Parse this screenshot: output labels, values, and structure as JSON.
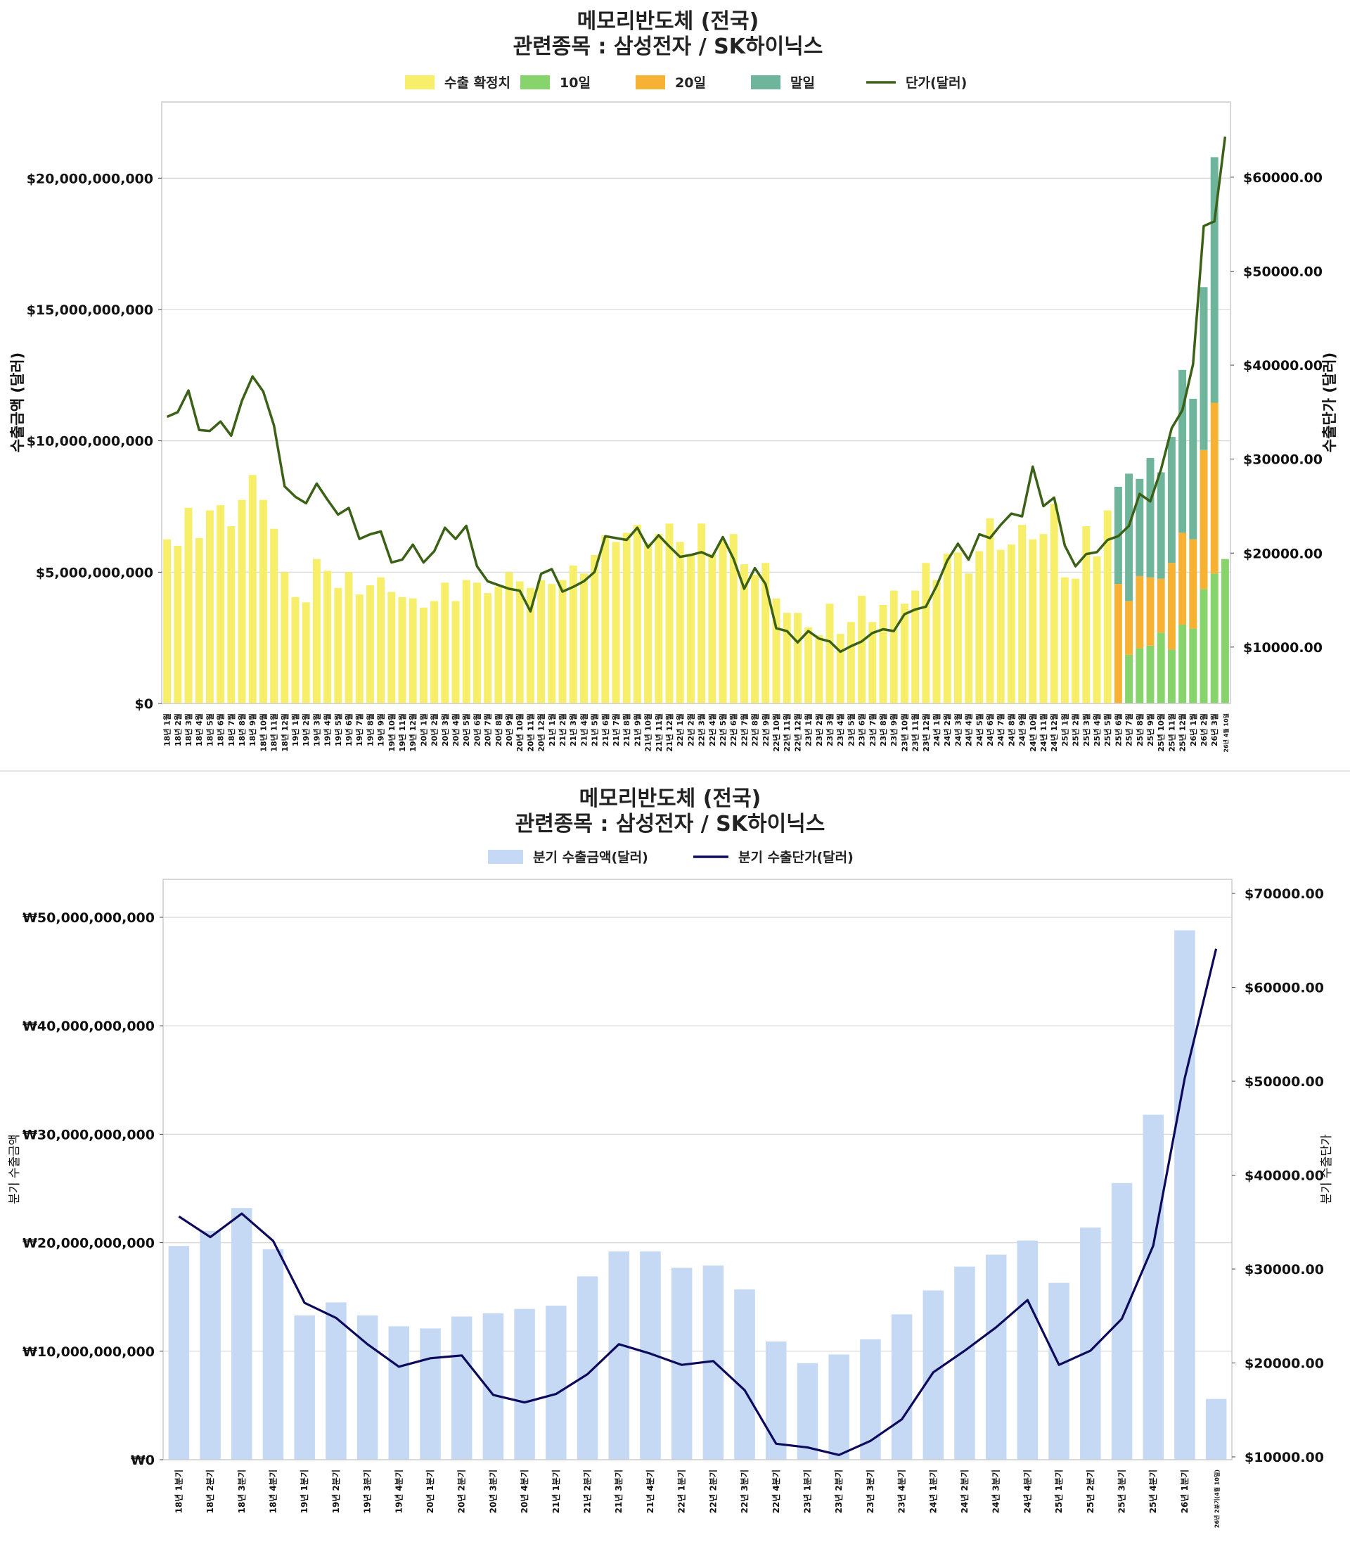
{
  "chart_data": [
    {
      "type": "bar",
      "title": "메모리반도체 (전국)",
      "subtitle": "관련종목 : 삼성전자 / SK하이닉스",
      "ylabel": "수출금액 (달러)",
      "y2label": "수출단가 (달러)",
      "ylim": [
        0,
        22900000000
      ],
      "y2lim": [
        4000,
        68000
      ],
      "yticks": [
        0,
        5000000000,
        10000000000,
        15000000000,
        20000000000
      ],
      "ytick_labels": [
        "$0",
        "$5,000,000,000",
        "$10,000,000,000",
        "$15,000,000,000",
        "$20,000,000,000"
      ],
      "y2ticks": [
        10000,
        20000,
        30000,
        40000,
        50000,
        60000
      ],
      "y2tick_labels": [
        "$10000.00",
        "$20000.00",
        "$30000.00",
        "$40000.00",
        "$50000.00",
        "$60000.00"
      ],
      "legend_position": "top-center",
      "grid": true,
      "colors": {
        "confirmed": "#f7ef6a",
        "d10": "#87d46c",
        "d20": "#f7b233",
        "end": "#6fb59b",
        "price": "#3b6116"
      },
      "legend": [
        {
          "label": "수출 확정치",
          "kind": "box",
          "color": "#f7ef6a"
        },
        {
          "label": "10일",
          "kind": "box",
          "color": "#87d46c"
        },
        {
          "label": "20일",
          "kind": "box",
          "color": "#f7b233"
        },
        {
          "label": "말일",
          "kind": "box",
          "color": "#6fb59b"
        },
        {
          "label": "단가(달러)",
          "kind": "line",
          "color": "#3b6116"
        }
      ],
      "categories": [
        "18년 1월",
        "18년 2월",
        "18년 3월",
        "18년 4월",
        "18년 5월",
        "18년 6월",
        "18년 7월",
        "18년 8월",
        "18년 9월",
        "18년 10월",
        "18년 11월",
        "18년 12월",
        "19년 1월",
        "19년 2월",
        "19년 3월",
        "19년 4월",
        "19년 5월",
        "19년 6월",
        "19년 7월",
        "19년 8월",
        "19년 9월",
        "19년 10월",
        "19년 11월",
        "19년 12월",
        "20년 1월",
        "20년 2월",
        "20년 3월",
        "20년 4월",
        "20년 5월",
        "20년 6월",
        "20년 7월",
        "20년 8월",
        "20년 9월",
        "20년 10월",
        "20년 11월",
        "20년 12월",
        "21년 1월",
        "21년 2월",
        "21년 3월",
        "21년 4월",
        "21년 5월",
        "21년 6월",
        "21년 7월",
        "21년 8월",
        "21년 9월",
        "21년 10월",
        "21년 11월",
        "21년 12월",
        "22년 1월",
        "22년 2월",
        "22년 3월",
        "22년 4월",
        "22년 5월",
        "22년 6월",
        "22년 7월",
        "22년 8월",
        "22년 9월",
        "22년 10월",
        "22년 11월",
        "22년 12월",
        "23년 1월",
        "23년 2월",
        "23년 3월",
        "23년 4월",
        "23년 5월",
        "23년 6월",
        "23년 7월",
        "23년 8월",
        "23년 9월",
        "23년 10월",
        "23년 11월",
        "23년 12월",
        "24년 1월",
        "24년 2월",
        "24년 3월",
        "24년 4월",
        "24년 5월",
        "24년 6월",
        "24년 7월",
        "24년 8월",
        "24년 9월",
        "24년 10월",
        "24년 11월",
        "24년 12월",
        "25년 1월",
        "25년 2월",
        "25년 3월",
        "25년 4월",
        "25년 5월",
        "25년 6월",
        "25년 7월",
        "25년 8월",
        "25년 9월",
        "25년 10월",
        "25년 11월",
        "25년 12월",
        "26년 1월",
        "26년 2월",
        "26년 3월",
        "26년 4월 10일"
      ],
      "series": [
        {
          "name": "수출 확정치",
          "values": [
            6250000000,
            6000000000,
            7450000000,
            6300000000,
            7350000000,
            7550000000,
            6750000000,
            7750000000,
            8700000000,
            7750000000,
            6650000000,
            5000000000,
            4050000000,
            3850000000,
            5500000000,
            5050000000,
            4400000000,
            5000000000,
            4150000000,
            4500000000,
            4800000000,
            4250000000,
            4050000000,
            4000000000,
            3650000000,
            3900000000,
            4600000000,
            3900000000,
            4700000000,
            4600000000,
            4200000000,
            4450000000,
            5000000000,
            4650000000,
            4400000000,
            4700000000,
            4550000000,
            4700000000,
            5250000000,
            4950000000,
            5650000000,
            6400000000,
            6150000000,
            6500000000,
            6800000000,
            6100000000,
            6450000000,
            6850000000,
            6150000000,
            5650000000,
            6850000000,
            5700000000,
            6200000000,
            6450000000,
            5300000000,
            4900000000,
            5350000000,
            4000000000,
            3450000000,
            3450000000,
            2900000000,
            2600000000,
            3800000000,
            2650000000,
            3100000000,
            4100000000,
            3100000000,
            3750000000,
            4300000000,
            3800000000,
            4300000000,
            5350000000,
            4700000000,
            5700000000,
            5750000000,
            4950000000,
            5800000000,
            7050000000,
            5850000000,
            6050000000,
            6800000000,
            6250000000,
            6450000000,
            7600000000,
            4800000000,
            4750000000,
            6750000000,
            5600000000,
            7350000000,
            0,
            0,
            0,
            0,
            0,
            0,
            0,
            0,
            0,
            0,
            0
          ]
        },
        {
          "name": "10일",
          "values": [
            0,
            0,
            0,
            0,
            0,
            0,
            0,
            0,
            0,
            0,
            0,
            0,
            0,
            0,
            0,
            0,
            0,
            0,
            0,
            0,
            0,
            0,
            0,
            0,
            0,
            0,
            0,
            0,
            0,
            0,
            0,
            0,
            0,
            0,
            0,
            0,
            0,
            0,
            0,
            0,
            0,
            0,
            0,
            0,
            0,
            0,
            0,
            0,
            0,
            0,
            0,
            0,
            0,
            0,
            0,
            0,
            0,
            0,
            0,
            0,
            0,
            0,
            0,
            0,
            0,
            0,
            0,
            0,
            0,
            0,
            0,
            0,
            0,
            0,
            0,
            0,
            0,
            0,
            0,
            0,
            0,
            0,
            0,
            0,
            0,
            0,
            0,
            0,
            0,
            0,
            1850000000,
            2100000000,
            2200000000,
            2700000000,
            2050000000,
            3000000000,
            2850000000,
            4350000000,
            4950000000,
            5500000000
          ]
        },
        {
          "name": "20일",
          "values": [
            0,
            0,
            0,
            0,
            0,
            0,
            0,
            0,
            0,
            0,
            0,
            0,
            0,
            0,
            0,
            0,
            0,
            0,
            0,
            0,
            0,
            0,
            0,
            0,
            0,
            0,
            0,
            0,
            0,
            0,
            0,
            0,
            0,
            0,
            0,
            0,
            0,
            0,
            0,
            0,
            0,
            0,
            0,
            0,
            0,
            0,
            0,
            0,
            0,
            0,
            0,
            0,
            0,
            0,
            0,
            0,
            0,
            0,
            0,
            0,
            0,
            0,
            0,
            0,
            0,
            0,
            0,
            0,
            0,
            0,
            0,
            0,
            0,
            0,
            0,
            0,
            0,
            0,
            0,
            0,
            0,
            0,
            0,
            0,
            0,
            0,
            0,
            0,
            0,
            4550000000,
            2050000000,
            2750000000,
            2600000000,
            2050000000,
            3300000000,
            3500000000,
            3400000000,
            5300000000,
            6500000000,
            0
          ]
        },
        {
          "name": "말일",
          "values": [
            0,
            0,
            0,
            0,
            0,
            0,
            0,
            0,
            0,
            0,
            0,
            0,
            0,
            0,
            0,
            0,
            0,
            0,
            0,
            0,
            0,
            0,
            0,
            0,
            0,
            0,
            0,
            0,
            0,
            0,
            0,
            0,
            0,
            0,
            0,
            0,
            0,
            0,
            0,
            0,
            0,
            0,
            0,
            0,
            0,
            0,
            0,
            0,
            0,
            0,
            0,
            0,
            0,
            0,
            0,
            0,
            0,
            0,
            0,
            0,
            0,
            0,
            0,
            0,
            0,
            0,
            0,
            0,
            0,
            0,
            0,
            0,
            0,
            0,
            0,
            0,
            0,
            0,
            0,
            0,
            0,
            0,
            0,
            0,
            0,
            0,
            0,
            0,
            0,
            3700000000,
            4850000000,
            3700000000,
            4550000000,
            4050000000,
            4800000000,
            6200000000,
            5350000000,
            6200000000,
            9350000000,
            0
          ]
        },
        {
          "name": "단가(달러)",
          "axis": "right",
          "values": [
            34500,
            35000,
            37300,
            33100,
            33000,
            34000,
            32500,
            36200,
            38800,
            37200,
            33600,
            27100,
            26000,
            25300,
            27400,
            25700,
            24100,
            24800,
            21500,
            22000,
            22300,
            19000,
            19300,
            20900,
            19000,
            20200,
            22700,
            21500,
            22900,
            18600,
            17000,
            16600,
            16200,
            16000,
            13800,
            17800,
            18300,
            15900,
            16400,
            17000,
            18000,
            21800,
            21600,
            21400,
            22700,
            20600,
            21900,
            20700,
            19600,
            19800,
            20100,
            19600,
            21700,
            19400,
            16200,
            18400,
            16700,
            12000,
            11700,
            10500,
            11700,
            10900,
            10600,
            9500,
            10100,
            10600,
            11500,
            11900,
            11700,
            13500,
            14000,
            14300,
            16500,
            19200,
            21000,
            19300,
            22000,
            21600,
            23000,
            24200,
            23900,
            29200,
            25000,
            25900,
            20800,
            18600,
            19900,
            20100,
            21400,
            21800,
            22900,
            26300,
            25500,
            28900,
            33300,
            35200,
            40100,
            54800,
            55300,
            64300
          ]
        }
      ]
    },
    {
      "type": "bar",
      "title": "메모리반도체 (전국)",
      "subtitle": "관련종목 : 삼성전자 / SK하이닉스",
      "ylabel": "분기 수출금액",
      "y2label": "분기 수출단가",
      "ylim": [
        0,
        53500000000
      ],
      "y2lim": [
        9700,
        71500
      ],
      "yticks": [
        0,
        10000000000,
        20000000000,
        30000000000,
        40000000000,
        50000000000
      ],
      "ytick_labels": [
        "₩0",
        "₩10,000,000,000",
        "₩20,000,000,000",
        "₩30,000,000,000",
        "₩40,000,000,000",
        "₩50,000,000,000"
      ],
      "y2ticks": [
        10000,
        20000,
        30000,
        40000,
        50000,
        60000,
        70000
      ],
      "y2tick_labels": [
        "$10000.00",
        "$20000.00",
        "$30000.00",
        "$40000.00",
        "$50000.00",
        "$60000.00",
        "$70000.00"
      ],
      "legend_position": "top-center",
      "grid": true,
      "colors": {
        "bar": "#c5d9f5",
        "line": "#0d0a5c"
      },
      "legend": [
        {
          "label": "분기 수출금액(달러)",
          "kind": "box",
          "color": "#c5d9f5"
        },
        {
          "label": "분기 수출단가(달러)",
          "kind": "line",
          "color": "#0d0a5c"
        }
      ],
      "categories": [
        "18년 1분기",
        "18년 2분기",
        "18년 3분기",
        "18년 4분기",
        "19년 1분기",
        "19년 2분기",
        "19년 3분기",
        "19년 4분기",
        "20년 1분기",
        "20년 2분기",
        "20년 3분기",
        "20년 4분기",
        "21년 1분기",
        "21년 2분기",
        "21년 3분기",
        "21년 4분기",
        "22년 1분기",
        "22년 2분기",
        "22년 3분기",
        "22년 4분기",
        "23년 1분기",
        "23년 2분기",
        "23년 3분기",
        "23년 4분기",
        "24년 1분기",
        "24년 2분기",
        "24년 3분기",
        "24년 4분기",
        "25년 1분기",
        "25년 2분기",
        "25년 3분기",
        "25년 4분기",
        "26년 1분기",
        "26년 2분기(4월 10일)"
      ],
      "series": [
        {
          "name": "분기 수출금액(달러)",
          "values": [
            19700000000,
            21100000000,
            23200000000,
            19400000000,
            13300000000,
            14500000000,
            13300000000,
            12300000000,
            12100000000,
            13200000000,
            13500000000,
            13900000000,
            14200000000,
            16900000000,
            19200000000,
            19200000000,
            17700000000,
            17900000000,
            15700000000,
            10900000000,
            8900000000,
            9700000000,
            11100000000,
            13400000000,
            15600000000,
            17800000000,
            18900000000,
            20200000000,
            16300000000,
            21400000000,
            25500000000,
            31800000000,
            48800000000,
            5600000000
          ]
        },
        {
          "name": "분기 수출단가(달러)",
          "axis": "right",
          "values": [
            35600,
            33400,
            35900,
            33000,
            26400,
            24800,
            22000,
            19600,
            20500,
            20800,
            16600,
            15800,
            16700,
            18800,
            22000,
            21000,
            19800,
            20200,
            17100,
            11400,
            11000,
            10200,
            11700,
            14000,
            19000,
            21300,
            23800,
            26700,
            19800,
            21300,
            24700,
            32500,
            50300,
            64100
          ]
        }
      ]
    }
  ]
}
